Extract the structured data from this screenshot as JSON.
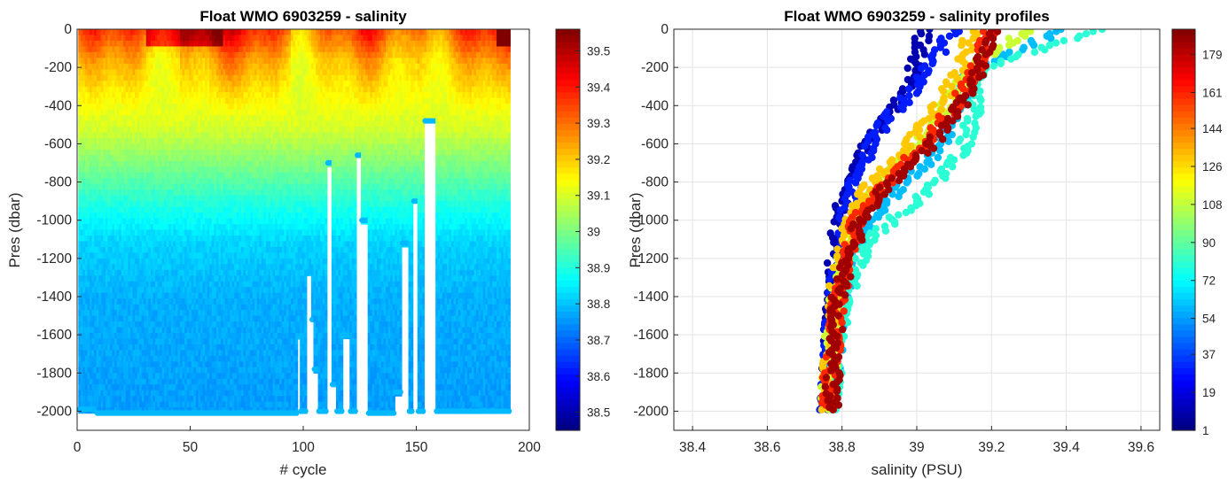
{
  "chart_data": [
    {
      "type": "heatmap",
      "title": "Float WMO 6903259 - salinity",
      "xlabel": "# cycle",
      "ylabel": "Pres (dbar)",
      "xlim": [
        0,
        200
      ],
      "ylim": [
        -2100,
        0
      ],
      "xticks": [
        "0",
        "50",
        "100",
        "150",
        "200"
      ],
      "yticks": [
        "0",
        "-200",
        "-400",
        "-600",
        "-800",
        "-1000",
        "-1200",
        "-1400",
        "-1600",
        "-1800",
        "-2000"
      ],
      "colorbar": {
        "label": "",
        "range": [
          38.45,
          39.56
        ],
        "ticks": [
          "39.5",
          "39.4",
          "39.3",
          "39.2",
          "39.1",
          "39",
          "38.9",
          "38.8",
          "38.7",
          "38.6",
          "38.5"
        ]
      },
      "grid": false,
      "cycles": 191,
      "max_depth_by_cycle_segments": [
        {
          "from": 1,
          "to": 8,
          "max_pres": -1990
        },
        {
          "from": 9,
          "to": 97,
          "max_pres": -2010
        },
        {
          "from": 98,
          "to": 98,
          "max_pres": -1610
        },
        {
          "from": 99,
          "to": 101,
          "max_pres": -2000
        },
        {
          "from": 102,
          "to": 103,
          "max_pres": -1270
        },
        {
          "from": 104,
          "to": 104,
          "max_pres": -1520
        },
        {
          "from": 105,
          "to": 106,
          "max_pres": -1780
        },
        {
          "from": 107,
          "to": 110,
          "max_pres": -2000
        },
        {
          "from": 111,
          "to": 112,
          "max_pres": -700
        },
        {
          "from": 113,
          "to": 114,
          "max_pres": -1860
        },
        {
          "from": 115,
          "to": 117,
          "max_pres": -2000
        },
        {
          "from": 118,
          "to": 120,
          "max_pres": -1600
        },
        {
          "from": 121,
          "to": 123,
          "max_pres": -2000
        },
        {
          "from": 124,
          "to": 125,
          "max_pres": -660
        },
        {
          "from": 126,
          "to": 128,
          "max_pres": -1000
        },
        {
          "from": 129,
          "to": 140,
          "max_pres": -2010
        },
        {
          "from": 141,
          "to": 143,
          "max_pres": -1900
        },
        {
          "from": 144,
          "to": 146,
          "max_pres": -1120
        },
        {
          "from": 147,
          "to": 148,
          "max_pres": -2000
        },
        {
          "from": 149,
          "to": 150,
          "max_pres": -900
        },
        {
          "from": 151,
          "to": 153,
          "max_pres": -2000
        },
        {
          "from": 154,
          "to": 158,
          "max_pres": -480
        },
        {
          "from": 159,
          "to": 191,
          "max_pres": -2000
        }
      ],
      "salinity_by_depth": {
        "pres": [
          0,
          -150,
          -300,
          -500,
          -700,
          -900,
          -1100,
          -1400,
          -2000
        ],
        "sal": [
          39.3,
          39.2,
          39.15,
          39.1,
          39.0,
          38.9,
          38.82,
          38.78,
          38.76
        ]
      }
    },
    {
      "type": "scatter",
      "title": "Float WMO 6903259 - salinity profiles",
      "xlabel": "salinity (PSU)",
      "ylabel": "Pres (dbar)",
      "xlim": [
        38.35,
        39.65
      ],
      "ylim": [
        -2100,
        0
      ],
      "xticks": [
        "38.4",
        "38.6",
        "38.8",
        "39",
        "39.2",
        "39.4",
        "39.6"
      ],
      "yticks": [
        "0",
        "-200",
        "-400",
        "-600",
        "-800",
        "-1000",
        "-1200",
        "-1400",
        "-1600",
        "-1800",
        "-2000"
      ],
      "grid": true,
      "colorbar": {
        "label": "",
        "range": [
          1,
          191
        ],
        "ticks": [
          "179",
          "161",
          "144",
          "126",
          "108",
          "90",
          "72",
          "54",
          "37",
          "19",
          "1"
        ]
      },
      "profiles": [
        {
          "cycle": 10,
          "sal": [
            39.02,
            38.98,
            38.92,
            38.86,
            38.8,
            38.78,
            38.77,
            38.76
          ],
          "pres": [
            0,
            -300,
            -450,
            -600,
            -900,
            -1200,
            -1600,
            -2000
          ]
        },
        {
          "cycle": 30,
          "sal": [
            39.1,
            39.0,
            38.93,
            38.87,
            38.82,
            38.79,
            38.77,
            38.76
          ],
          "pres": [
            0,
            -300,
            -450,
            -620,
            -900,
            -1200,
            -1600,
            -2000
          ]
        },
        {
          "cycle": 60,
          "sal": [
            39.4,
            39.15,
            39.1,
            39.05,
            38.92,
            38.83,
            38.79,
            38.77
          ],
          "pres": [
            0,
            -200,
            -450,
            -650,
            -900,
            -1150,
            -1500,
            -2000
          ]
        },
        {
          "cycle": 80,
          "sal": [
            39.5,
            39.18,
            39.15,
            39.12,
            39.0,
            38.87,
            38.8,
            38.77
          ],
          "pres": [
            0,
            -200,
            -450,
            -650,
            -900,
            -1100,
            -1450,
            -2000
          ]
        },
        {
          "cycle": 110,
          "sal": [
            39.3,
            39.15,
            39.08,
            39.0,
            38.9,
            38.83,
            38.78,
            38.76
          ],
          "pres": [
            0,
            -200,
            -400,
            -600,
            -800,
            -1000,
            -1400,
            -2000
          ]
        },
        {
          "cycle": 130,
          "sal": [
            39.15,
            39.12,
            39.06,
            38.98,
            38.88,
            38.82,
            38.78,
            38.76
          ],
          "pres": [
            0,
            -200,
            -400,
            -600,
            -800,
            -1000,
            -1400,
            -2000
          ]
        },
        {
          "cycle": 160,
          "sal": [
            39.2,
            39.16,
            39.1,
            39.02,
            38.92,
            38.84,
            38.79,
            38.76
          ],
          "pres": [
            0,
            -200,
            -400,
            -600,
            -800,
            -1000,
            -1400,
            -2000
          ]
        },
        {
          "cycle": 185,
          "sal": [
            39.2,
            39.17,
            39.12,
            39.04,
            38.93,
            38.85,
            38.79,
            38.77
          ],
          "pres": [
            0,
            -200,
            -400,
            -600,
            -800,
            -1000,
            -1400,
            -2000
          ]
        }
      ]
    }
  ]
}
